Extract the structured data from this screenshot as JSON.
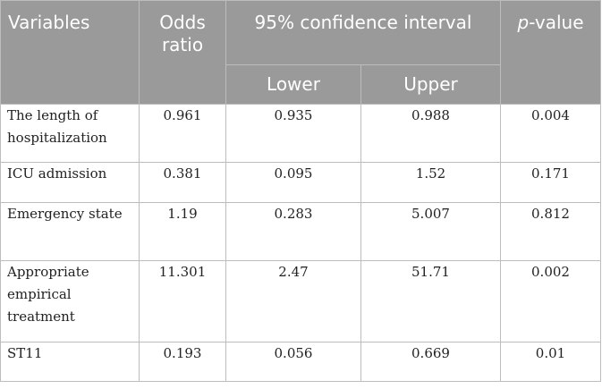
{
  "table": {
    "headers": {
      "variables": "Variables",
      "odds_ratio": "Odds ratio",
      "ci": "95% confidence interval",
      "p_value_italic": "p",
      "p_value_rest": "-value",
      "lower": "Lower",
      "upper": "Upper"
    },
    "rows": [
      {
        "variable": "The length of hospitalization",
        "odds_ratio": "0.961",
        "lower": "0.935",
        "upper": "0.988",
        "p_value": "0.004"
      },
      {
        "variable": "ICU admission",
        "odds_ratio": "0.381",
        "lower": "0.095",
        "upper": "1.52",
        "p_value": "0.171"
      },
      {
        "variable": "Emergency state",
        "odds_ratio": "1.19",
        "lower": "0.283",
        "upper": "5.007",
        "p_value": "0.812"
      },
      {
        "variable": "Appropriate empirical treatment",
        "odds_ratio": "11.301",
        "lower": "2.47",
        "upper": "51.71",
        "p_value": "0.002"
      },
      {
        "variable": "ST11",
        "odds_ratio": "0.193",
        "lower": "0.056",
        "upper": "0.669",
        "p_value": "0.01"
      }
    ]
  }
}
